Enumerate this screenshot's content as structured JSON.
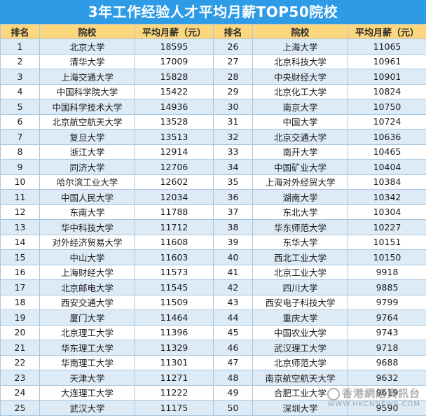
{
  "title": "3年工作经验人才平均月薪TOP50院校",
  "headers": [
    "排名",
    "院校",
    "平均月薪（元）",
    "排名",
    "院校",
    "平均月薪（元）"
  ],
  "rows": [
    [
      [
        "1",
        "北京大学",
        "18595"
      ],
      [
        "26",
        "上海大学",
        "11065"
      ]
    ],
    [
      [
        "2",
        "清华大学",
        "17009"
      ],
      [
        "27",
        "北京科技大学",
        "10961"
      ]
    ],
    [
      [
        "3",
        "上海交通大学",
        "15828"
      ],
      [
        "28",
        "中央财经大学",
        "10901"
      ]
    ],
    [
      [
        "4",
        "中国科学院大学",
        "15422"
      ],
      [
        "29",
        "北京化工大学",
        "10824"
      ]
    ],
    [
      [
        "5",
        "中国科学技术大学",
        "14936"
      ],
      [
        "30",
        "南京大学",
        "10750"
      ]
    ],
    [
      [
        "6",
        "北京航空航天大学",
        "13528"
      ],
      [
        "31",
        "中国大学",
        "10724"
      ]
    ],
    [
      [
        "7",
        "复旦大学",
        "13513"
      ],
      [
        "32",
        "北京交通大学",
        "10636"
      ]
    ],
    [
      [
        "8",
        "浙江大学",
        "12914"
      ],
      [
        "33",
        "南开大学",
        "10465"
      ]
    ],
    [
      [
        "9",
        "同济大学",
        "12706"
      ],
      [
        "34",
        "中国矿业大学",
        "10404"
      ]
    ],
    [
      [
        "10",
        "哈尔滨工业大学",
        "12602"
      ],
      [
        "35",
        "上海对外经贸大学",
        "10384"
      ]
    ],
    [
      [
        "11",
        "中国人民大学",
        "12034"
      ],
      [
        "36",
        "湖南大学",
        "10342"
      ]
    ],
    [
      [
        "12",
        "东南大学",
        "11788"
      ],
      [
        "37",
        "东北大学",
        "10304"
      ]
    ],
    [
      [
        "13",
        "华中科技大学",
        "11712"
      ],
      [
        "38",
        "华东师范大学",
        "10227"
      ]
    ],
    [
      [
        "14",
        "对外经济贸易大学",
        "11608"
      ],
      [
        "39",
        "东华大学",
        "10151"
      ]
    ],
    [
      [
        "15",
        "中山大学",
        "11603"
      ],
      [
        "40",
        "西北工业大学",
        "10150"
      ]
    ],
    [
      [
        "16",
        "上海财经大学",
        "11573"
      ],
      [
        "41",
        "北京工业大学",
        "9918"
      ]
    ],
    [
      [
        "17",
        "北京邮电大学",
        "11545"
      ],
      [
        "42",
        "四川大学",
        "9885"
      ]
    ],
    [
      [
        "18",
        "西安交通大学",
        "11509"
      ],
      [
        "43",
        "西安电子科技大学",
        "9799"
      ]
    ],
    [
      [
        "19",
        "厦门大学",
        "11464"
      ],
      [
        "44",
        "重庆大学",
        "9764"
      ]
    ],
    [
      [
        "20",
        "北京理工大学",
        "11396"
      ],
      [
        "45",
        "中国农业大学",
        "9743"
      ]
    ],
    [
      [
        "21",
        "华东理工大学",
        "11329"
      ],
      [
        "46",
        "武汉理工大学",
        "9718"
      ]
    ],
    [
      [
        "22",
        "华南理工大学",
        "11301"
      ],
      [
        "47",
        "北京师范大学",
        "9688"
      ]
    ],
    [
      [
        "23",
        "天津大学",
        "11271"
      ],
      [
        "48",
        "南京航空航天大学",
        "9632"
      ]
    ],
    [
      [
        "24",
        "大连理工大学",
        "11222"
      ],
      [
        "49",
        "合肥工业大学",
        "9619"
      ]
    ],
    [
      [
        "25",
        "武汉大学",
        "11175"
      ],
      [
        "50",
        "深圳大学",
        "9590"
      ]
    ]
  ],
  "watermark": {
    "main": "香港網絡資訊台",
    "url": "WWW.HKCNNEWS.COM"
  }
}
